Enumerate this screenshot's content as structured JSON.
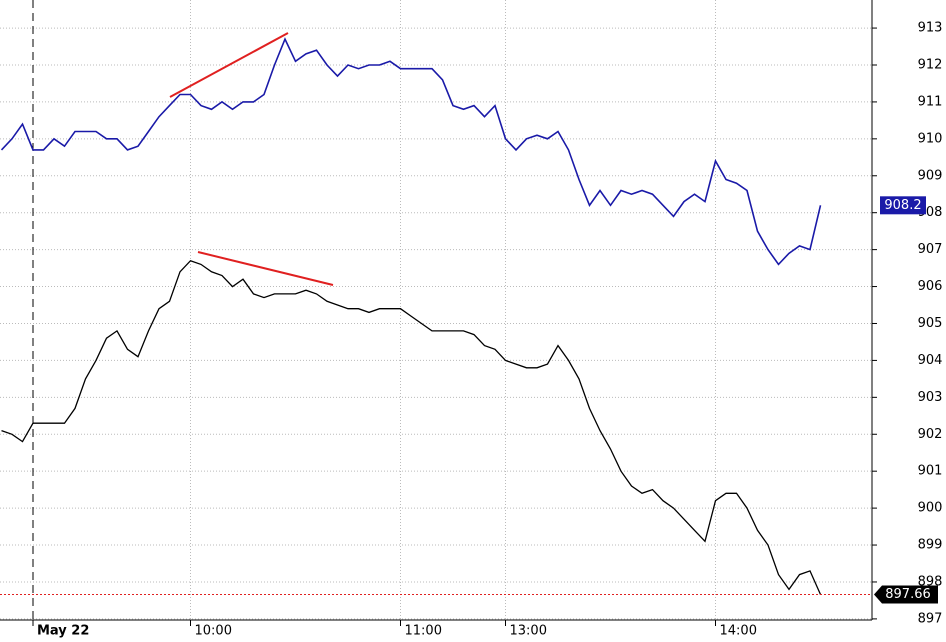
{
  "chart_data": {
    "type": "line",
    "categories": [
      null,
      null,
      null,
      "May 22",
      null,
      null,
      null,
      null,
      null,
      null,
      null,
      null,
      null,
      null,
      null,
      null,
      null,
      null,
      "10:00",
      null,
      null,
      null,
      null,
      null,
      null,
      null,
      null,
      null,
      null,
      null,
      null,
      null,
      null,
      null,
      null,
      null,
      null,
      null,
      "11:00",
      null,
      null,
      null,
      null,
      null,
      null,
      null,
      null,
      null,
      "13:00",
      null,
      null,
      null,
      null,
      null,
      null,
      null,
      null,
      null,
      null,
      null,
      null,
      null,
      null,
      null,
      null,
      null,
      null,
      null,
      "14:00",
      null,
      null,
      null,
      null,
      null,
      null,
      null,
      null,
      null,
      null
    ],
    "series": [
      {
        "color": "#1a1aa8",
        "values": [
          909.7,
          910.0,
          910.4,
          909.7,
          909.7,
          910.0,
          909.8,
          910.2,
          910.2,
          910.2,
          910.0,
          910.0,
          909.7,
          909.8,
          910.2,
          910.6,
          910.9,
          911.2,
          911.2,
          910.9,
          910.8,
          911.0,
          910.8,
          911.0,
          911.0,
          911.2,
          912.0,
          912.7,
          912.1,
          912.3,
          912.4,
          912.0,
          911.7,
          912.0,
          911.9,
          912.0,
          912.0,
          912.1,
          911.9,
          911.9,
          911.9,
          911.9,
          911.6,
          910.9,
          910.8,
          910.9,
          910.6,
          910.9,
          910.0,
          909.7,
          910.0,
          910.1,
          910.0,
          910.2,
          909.7,
          908.9,
          908.2,
          908.6,
          908.2,
          908.6,
          908.5,
          908.6,
          908.5,
          908.2,
          907.9,
          908.3,
          908.5,
          908.3,
          909.4,
          908.9,
          908.8,
          908.6,
          907.5,
          907.0,
          906.6,
          906.9,
          907.1,
          907.0,
          908.2
        ]
      },
      {
        "color": "#000000",
        "values": [
          902.1,
          902.0,
          901.8,
          902.3,
          902.3,
          902.3,
          902.3,
          902.7,
          903.5,
          904.0,
          904.6,
          904.8,
          904.3,
          904.1,
          904.8,
          905.4,
          905.6,
          906.4,
          906.7,
          906.6,
          906.4,
          906.3,
          906.0,
          906.2,
          905.8,
          905.7,
          905.8,
          905.8,
          905.8,
          905.9,
          905.8,
          905.6,
          905.5,
          905.4,
          905.4,
          905.3,
          905.4,
          905.4,
          905.4,
          905.2,
          905.0,
          904.8,
          904.8,
          904.8,
          904.8,
          904.7,
          904.4,
          904.3,
          904.0,
          903.9,
          903.8,
          903.8,
          903.9,
          904.4,
          904.0,
          903.5,
          902.7,
          902.1,
          901.6,
          901.0,
          900.6,
          900.4,
          900.5,
          900.2,
          900.0,
          899.7,
          899.4,
          899.1,
          900.2,
          900.4,
          900.4,
          900.0,
          899.4,
          899.0,
          898.2,
          897.8,
          898.2,
          898.3,
          897.66
        ]
      }
    ],
    "ylim": [
      896.97,
      913.76
    ],
    "yticks": [
      897,
      898,
      899,
      900,
      901,
      902,
      903,
      904,
      905,
      906,
      907,
      908,
      909,
      910,
      911,
      912,
      913
    ],
    "grid": true
  }
}
